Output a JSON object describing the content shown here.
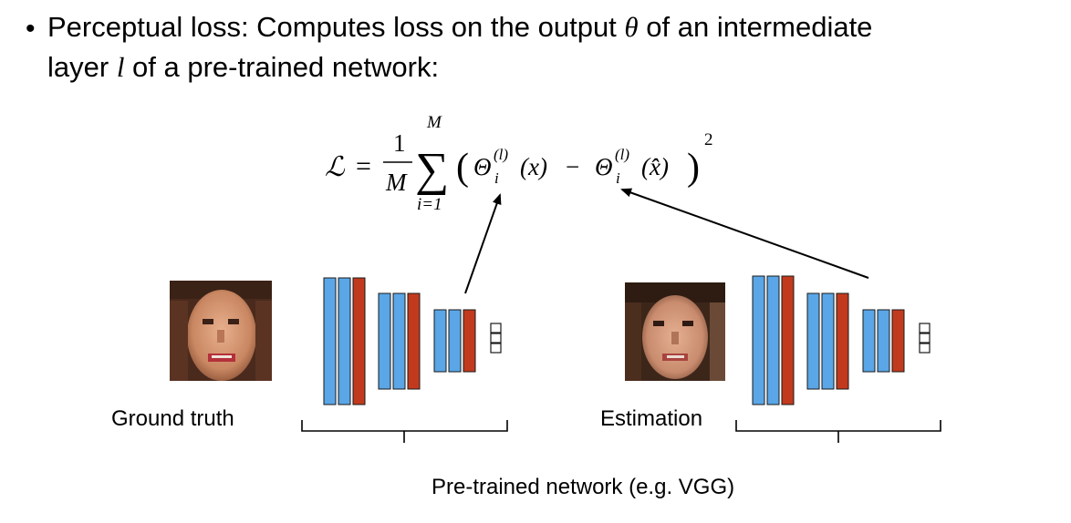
{
  "bullet": {
    "symbol": "•",
    "line1_a": "Perceptual loss: Computes loss on the output ",
    "theta": "θ",
    "line1_b": " of an intermediate",
    "line2_a": "layer ",
    "ell": "l",
    "line2_b": " of a pre-trained network:"
  },
  "formula": {
    "lhs": "ℒ",
    "eq": "=",
    "frac_num": "1",
    "frac_den": "M",
    "sum_upper": "M",
    "sum_symbol": "∑",
    "sum_lower": "i=1",
    "open_paren": "(",
    "theta1": "Θ",
    "sup1": "(l)",
    "sub1": "i",
    "arg1": "(x)",
    "minus": "−",
    "theta2": "Θ",
    "sup2": "(l)",
    "sub2": "i",
    "arg2": "(x̂)",
    "close_paren": ")",
    "power": "2"
  },
  "captions": {
    "ground_truth": "Ground truth",
    "estimation": "Estimation",
    "network": "Pre-trained network (e.g. VGG)"
  },
  "colors": {
    "blue": "#5AA6E6",
    "red": "#C13A1E",
    "stroke": "#1a1a1a"
  }
}
